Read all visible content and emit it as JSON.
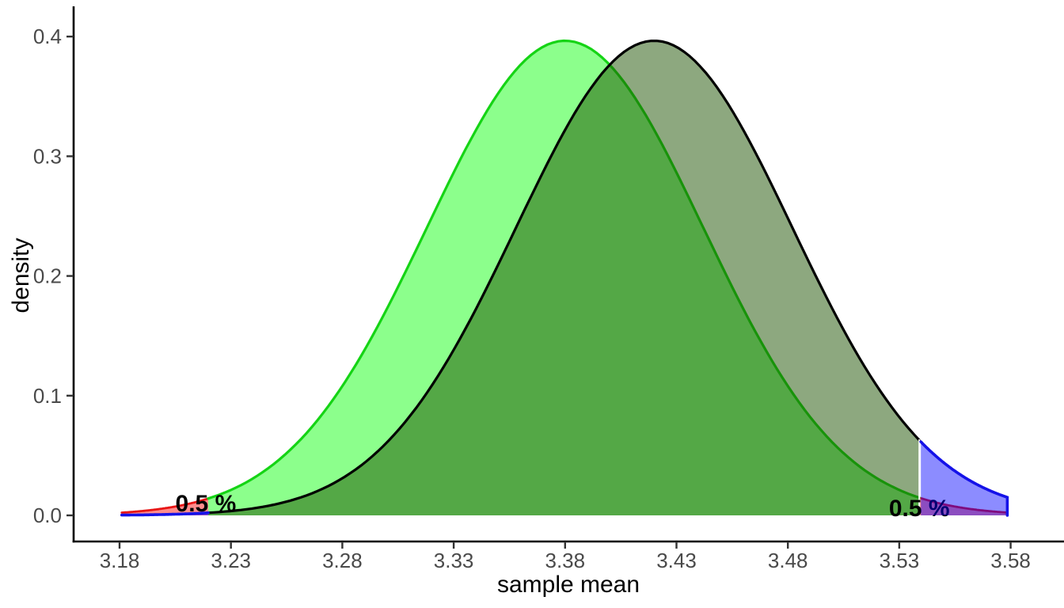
{
  "chart_data": {
    "type": "area",
    "title": "",
    "xlabel": "sample mean",
    "ylabel": "density",
    "x_ticks": [
      3.18,
      3.23,
      3.28,
      3.33,
      3.38,
      3.43,
      3.48,
      3.53,
      3.58
    ],
    "y_ticks": [
      "0.0",
      "0.1",
      "0.2",
      "0.3",
      "0.4"
    ],
    "xlim": [
      3.155,
      3.605
    ],
    "ylim": [
      0,
      0.4
    ],
    "domain": [
      3.181,
      3.5785
    ],
    "grid": false,
    "legend": "none",
    "curves": [
      {
        "name": "null-distribution",
        "mean": 3.38,
        "sd": 0.062,
        "peak_density": 0.3965,
        "stroke": "#15D415",
        "fill": "#00FF00",
        "fill_opacity": 0.45
      },
      {
        "name": "alternative-distribution",
        "mean": 3.42,
        "sd": 0.062,
        "peak_density": 0.3965,
        "stroke": "#000000",
        "fill": "#1B5100",
        "fill_opacity": 0.5
      }
    ],
    "critical_values": [
      3.2198,
      3.539
    ],
    "rejection_region": {
      "on_curve": "null-distribution",
      "fill": "#FF0000",
      "fill_opacity": 0.45,
      "stroke": "#E81515"
    },
    "power_region": {
      "on_curve": "alternative-distribution",
      "fill": "#0000FF",
      "fill_opacity": 0.45,
      "stroke": "#1512E8"
    },
    "annotations": [
      {
        "text": "0.5 %",
        "x": 3.2187,
        "y": 0.01,
        "bold": true,
        "color": "#000000"
      },
      {
        "text": "0.5 %",
        "x": 3.539,
        "y": 0.006,
        "bold": true,
        "color": "#000000"
      }
    ],
    "axis": {
      "line_color": "#000000",
      "tick_color": "#333333",
      "tick_label_color": "#4a4a4a"
    }
  }
}
